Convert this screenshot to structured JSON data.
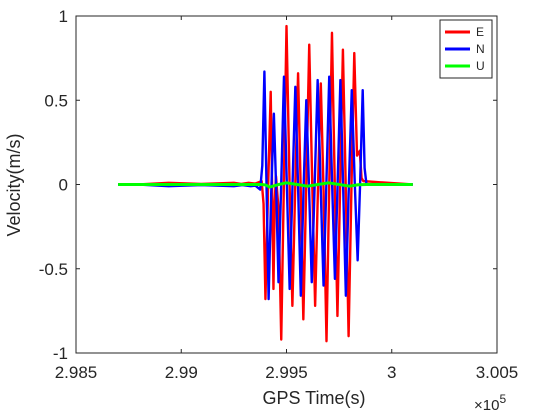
{
  "chart_data": {
    "type": "line",
    "xlabel": "GPS Time(s)",
    "ylabel": "Velocity(m/s)",
    "x_exponent_label": "×10",
    "x_exponent": "5",
    "xlim": [
      2.985,
      3.005
    ],
    "ylim": [
      -1,
      1
    ],
    "xticks": [
      2.985,
      2.99,
      2.995,
      3.0,
      3.005
    ],
    "xtick_labels": [
      "2.985",
      "2.99",
      "2.995",
      "3",
      "3.005"
    ],
    "yticks": [
      -1,
      -0.5,
      0,
      0.5,
      1
    ],
    "ytick_labels": [
      "-1",
      "-0.5",
      "0",
      "0.5",
      "1"
    ],
    "grid": false,
    "legend_position": "top-right",
    "series": [
      {
        "name": "E",
        "color": "#ff0000",
        "x_range": [
          2.987,
          3.001
        ],
        "peaks": [
          {
            "x": 2.9894,
            "y": 0.01
          },
          {
            "x": 2.9925,
            "y": 0.01
          },
          {
            "x": 2.9932,
            "y": 0.01
          },
          {
            "x": 2.99382,
            "y": 0.02
          },
          {
            "x": 2.994,
            "y": -0.68
          },
          {
            "x": 2.99425,
            "y": 0.55
          },
          {
            "x": 2.99438,
            "y": -0.62
          },
          {
            "x": 2.9945,
            "y": 0.05
          },
          {
            "x": 2.99475,
            "y": -0.92
          },
          {
            "x": 2.995,
            "y": 0.94
          },
          {
            "x": 2.99528,
            "y": -0.72
          },
          {
            "x": 2.99555,
            "y": 0.66
          },
          {
            "x": 2.9958,
            "y": -0.8
          },
          {
            "x": 2.99608,
            "y": 0.83
          },
          {
            "x": 2.99636,
            "y": -0.72
          },
          {
            "x": 2.99663,
            "y": 0.6
          },
          {
            "x": 2.9969,
            "y": -0.93
          },
          {
            "x": 2.99716,
            "y": 0.9
          },
          {
            "x": 2.99742,
            "y": -0.78
          },
          {
            "x": 2.99768,
            "y": 0.8
          },
          {
            "x": 2.99795,
            "y": -0.9
          },
          {
            "x": 2.99822,
            "y": 0.78
          },
          {
            "x": 2.99848,
            "y": 0.2
          },
          {
            "x": 2.99865,
            "y": 0.02
          }
        ]
      },
      {
        "name": "N",
        "color": "#0000ff",
        "x_range": [
          2.987,
          3.001
        ],
        "peaks": [
          {
            "x": 2.9894,
            "y": -0.01
          },
          {
            "x": 2.9925,
            "y": -0.01
          },
          {
            "x": 2.9933,
            "y": -0.01
          },
          {
            "x": 2.99375,
            "y": -0.03
          },
          {
            "x": 2.99395,
            "y": 0.67
          },
          {
            "x": 2.99415,
            "y": -0.68
          },
          {
            "x": 2.9944,
            "y": 0.42
          },
          {
            "x": 2.99462,
            "y": -0.58
          },
          {
            "x": 2.99488,
            "y": 0.64
          },
          {
            "x": 2.99515,
            "y": -0.62
          },
          {
            "x": 2.99542,
            "y": 0.58
          },
          {
            "x": 2.99568,
            "y": -0.66
          },
          {
            "x": 2.99594,
            "y": 0.5
          },
          {
            "x": 2.9962,
            "y": -0.58
          },
          {
            "x": 2.99648,
            "y": 0.62
          },
          {
            "x": 2.99676,
            "y": -0.6
          },
          {
            "x": 2.99703,
            "y": 0.64
          },
          {
            "x": 2.9973,
            "y": -0.56
          },
          {
            "x": 2.99756,
            "y": 0.62
          },
          {
            "x": 2.99782,
            "y": -0.66
          },
          {
            "x": 2.9981,
            "y": 0.56
          },
          {
            "x": 2.99838,
            "y": -0.45
          },
          {
            "x": 2.99862,
            "y": 0.56
          },
          {
            "x": 2.9988,
            "y": 0.0
          }
        ]
      },
      {
        "name": "U",
        "color": "#00ff00",
        "x_range": [
          2.987,
          3.001
        ],
        "peaks": [
          {
            "x": 2.9938,
            "y": 0.0
          },
          {
            "x": 2.9942,
            "y": -0.015
          },
          {
            "x": 2.995,
            "y": 0.01
          },
          {
            "x": 2.996,
            "y": -0.01
          },
          {
            "x": 2.997,
            "y": 0.01
          },
          {
            "x": 2.998,
            "y": -0.01
          },
          {
            "x": 2.9988,
            "y": 0.0
          }
        ]
      }
    ]
  }
}
